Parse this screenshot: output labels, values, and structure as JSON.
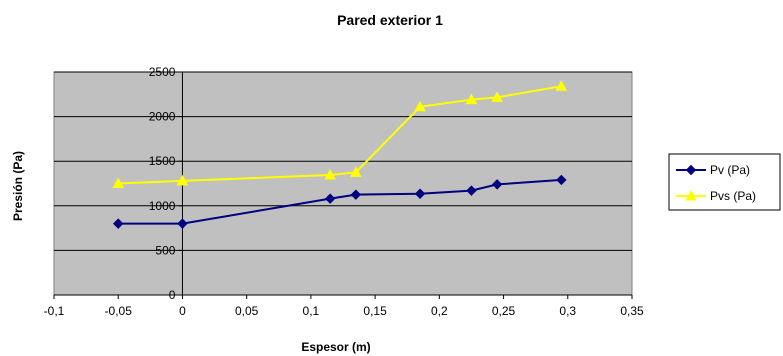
{
  "chart_data": {
    "type": "scatter",
    "title": "Pared exterior 1",
    "xlabel": "Espesor (m)",
    "ylabel": "Presión (Pa)",
    "xlim": [
      -0.1,
      0.35
    ],
    "ylim": [
      0,
      2500
    ],
    "xticks": [
      -0.1,
      -0.05,
      0,
      0.05,
      0.1,
      0.15,
      0.2,
      0.25,
      0.3,
      0.35
    ],
    "xtick_labels": [
      "-0,1",
      "-0,05",
      "0",
      "0,05",
      "0,1",
      "0,15",
      "0,2",
      "0,25",
      "0,3",
      "0,35"
    ],
    "yticks": [
      0,
      500,
      1000,
      1500,
      2000,
      2500
    ],
    "ytick_labels": [
      "0",
      "500",
      "1000",
      "1500",
      "2000",
      "2500"
    ],
    "plot_background": "#c0c0c0",
    "grid": "horizontal",
    "legend_position": "right",
    "series": [
      {
        "name": "Pv (Pa)",
        "color": "#000080",
        "marker": "diamond",
        "x": [
          -0.05,
          0,
          0.115,
          0.135,
          0.185,
          0.225,
          0.245,
          0.295
        ],
        "y": [
          800,
          800,
          1080,
          1125,
          1135,
          1170,
          1240,
          1290
        ]
      },
      {
        "name": "Pvs (Pa)",
        "color": "#ffff00",
        "marker": "triangle",
        "x": [
          -0.05,
          0,
          0.115,
          0.135,
          0.185,
          0.225,
          0.245,
          0.295
        ],
        "y": [
          1250,
          1280,
          1345,
          1375,
          2110,
          2190,
          2215,
          2340
        ]
      }
    ]
  }
}
